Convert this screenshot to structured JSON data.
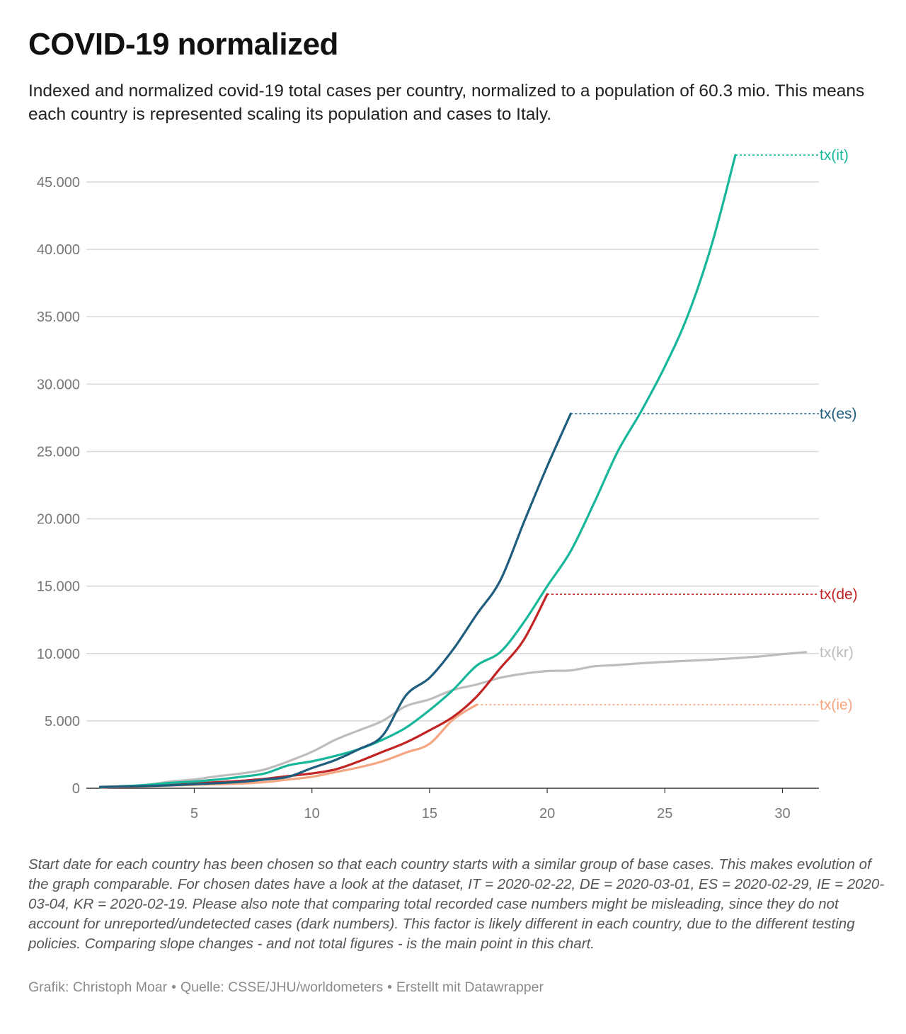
{
  "header": {
    "title": "COVID-19 normalized",
    "subtitle": "Indexed and normalized covid-19 total cases per country, normalized to a population of 60.3 mio. This means each country is represented scaling its population and cases to Italy."
  },
  "chart_data": {
    "type": "line",
    "title": "COVID-19 normalized",
    "xlabel": "",
    "ylabel": "",
    "xlim": [
      1,
      31
    ],
    "ylim": [
      0,
      47000
    ],
    "grid": true,
    "x_ticks": [
      5,
      10,
      15,
      20,
      25,
      30
    ],
    "y_ticks": [
      {
        "value": 0,
        "label": "0"
      },
      {
        "value": 5000,
        "label": "5.000"
      },
      {
        "value": 10000,
        "label": "10.000"
      },
      {
        "value": 15000,
        "label": "15.000"
      },
      {
        "value": 20000,
        "label": "20.000"
      },
      {
        "value": 25000,
        "label": "25.000"
      },
      {
        "value": 30000,
        "label": "30.000"
      },
      {
        "value": 35000,
        "label": "35.000"
      },
      {
        "value": 40000,
        "label": "40.000"
      },
      {
        "value": 45000,
        "label": "45.000"
      }
    ],
    "series": [
      {
        "name": "tx(kr)",
        "color": "#bdbdbd",
        "end_line": false,
        "points": [
          [
            1,
            100
          ],
          [
            2,
            150
          ],
          [
            3,
            250
          ],
          [
            4,
            500
          ],
          [
            5,
            650
          ],
          [
            6,
            900
          ],
          [
            7,
            1100
          ],
          [
            8,
            1400
          ],
          [
            9,
            2000
          ],
          [
            10,
            2700
          ],
          [
            11,
            3600
          ],
          [
            12,
            4300
          ],
          [
            13,
            5000
          ],
          [
            14,
            6100
          ],
          [
            15,
            6600
          ],
          [
            16,
            7300
          ],
          [
            17,
            7700
          ],
          [
            18,
            8200
          ],
          [
            19,
            8500
          ],
          [
            20,
            8700
          ],
          [
            21,
            8750
          ],
          [
            22,
            9050
          ],
          [
            23,
            9150
          ],
          [
            24,
            9280
          ],
          [
            25,
            9380
          ],
          [
            26,
            9460
          ],
          [
            27,
            9550
          ],
          [
            28,
            9650
          ],
          [
            29,
            9780
          ],
          [
            30,
            9950
          ],
          [
            31,
            10100
          ]
        ]
      },
      {
        "name": "tx(ie)",
        "color": "#f4a582",
        "end_line": true,
        "points": [
          [
            1,
            50
          ],
          [
            2,
            100
          ],
          [
            3,
            150
          ],
          [
            4,
            200
          ],
          [
            5,
            250
          ],
          [
            6,
            300
          ],
          [
            7,
            350
          ],
          [
            8,
            450
          ],
          [
            9,
            650
          ],
          [
            10,
            850
          ],
          [
            11,
            1200
          ],
          [
            12,
            1550
          ],
          [
            13,
            2000
          ],
          [
            14,
            2650
          ],
          [
            15,
            3300
          ],
          [
            16,
            5100
          ],
          [
            17,
            6200
          ]
        ]
      },
      {
        "name": "tx(de)",
        "color": "#c22323",
        "end_line": true,
        "points": [
          [
            1,
            80
          ],
          [
            2,
            120
          ],
          [
            3,
            180
          ],
          [
            4,
            250
          ],
          [
            5,
            350
          ],
          [
            6,
            450
          ],
          [
            7,
            550
          ],
          [
            8,
            700
          ],
          [
            9,
            900
          ],
          [
            10,
            1100
          ],
          [
            11,
            1400
          ],
          [
            12,
            2000
          ],
          [
            13,
            2700
          ],
          [
            14,
            3400
          ],
          [
            15,
            4300
          ],
          [
            16,
            5300
          ],
          [
            17,
            6800
          ],
          [
            18,
            8900
          ],
          [
            19,
            11000
          ],
          [
            20,
            14400
          ]
        ]
      },
      {
        "name": "tx(it)",
        "color": "#16b79a",
        "end_line": true,
        "points": [
          [
            1,
            80
          ],
          [
            2,
            150
          ],
          [
            3,
            250
          ],
          [
            4,
            400
          ],
          [
            5,
            500
          ],
          [
            6,
            650
          ],
          [
            7,
            850
          ],
          [
            8,
            1100
          ],
          [
            9,
            1700
          ],
          [
            10,
            2000
          ],
          [
            11,
            2400
          ],
          [
            12,
            2900
          ],
          [
            13,
            3600
          ],
          [
            14,
            4500
          ],
          [
            15,
            5800
          ],
          [
            16,
            7300
          ],
          [
            17,
            9100
          ],
          [
            18,
            10100
          ],
          [
            19,
            12300
          ],
          [
            20,
            15000
          ],
          [
            21,
            17600
          ],
          [
            22,
            21200
          ],
          [
            23,
            25000
          ],
          [
            24,
            28000
          ],
          [
            25,
            31300
          ],
          [
            26,
            35200
          ],
          [
            27,
            40400
          ],
          [
            28,
            47000
          ]
        ]
      },
      {
        "name": "tx(es)",
        "color": "#1e5d7d",
        "end_line": true,
        "points": [
          [
            1,
            100
          ],
          [
            2,
            130
          ],
          [
            3,
            170
          ],
          [
            4,
            220
          ],
          [
            5,
            300
          ],
          [
            6,
            380
          ],
          [
            7,
            480
          ],
          [
            8,
            650
          ],
          [
            9,
            850
          ],
          [
            10,
            1500
          ],
          [
            11,
            2100
          ],
          [
            12,
            2900
          ],
          [
            13,
            3900
          ],
          [
            14,
            6900
          ],
          [
            15,
            8200
          ],
          [
            16,
            10300
          ],
          [
            17,
            12900
          ],
          [
            18,
            15400
          ],
          [
            19,
            19700
          ],
          [
            20,
            23900
          ],
          [
            21,
            27800
          ]
        ]
      }
    ]
  },
  "footer": {
    "notes": "Start date for each country has been chosen so that each country starts with a similar group of base cases. This makes evolution of the graph comparable. For chosen dates have a look at the dataset, IT = 2020-02-22, DE = 2020-03-01, ES = 2020-02-29, IE = 2020-03-04, KR = 2020-02-19. Please also note that comparing total recorded case numbers might be misleading, since they do not account for unreported/undetected cases (dark numbers). This factor is likely different in each country, due to the different testing policies. Comparing slope changes - and not total figures - is the main point in this chart.",
    "credit": "Grafik: Christoph Moar",
    "source": "Quelle: CSSE/JHU/worldometers",
    "tool": "Erstellt mit Datawrapper"
  }
}
